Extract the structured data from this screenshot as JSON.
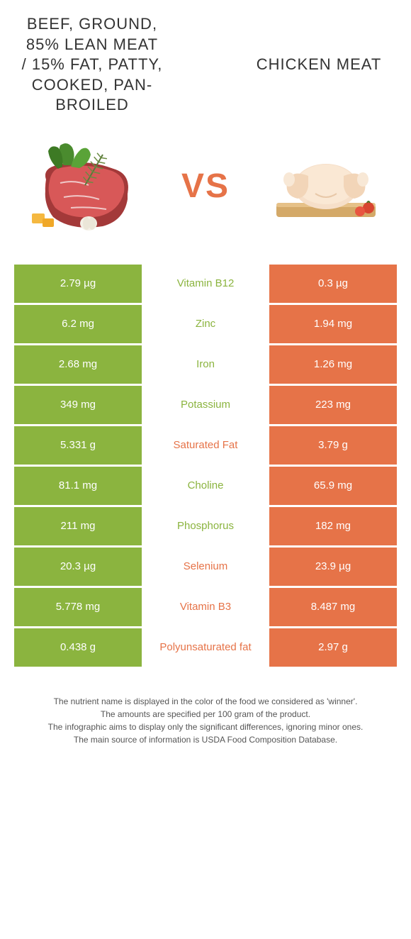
{
  "colors": {
    "left_bg": "#8bb43f",
    "right_bg": "#e67348",
    "left_text": "#8bb43f",
    "right_text": "#e67348",
    "vs": "#e67348"
  },
  "header": {
    "left_title": "BEEF, GROUND, 85% LEAN MEAT / 15% FAT, PATTY, COOKED, PAN-BROILED",
    "right_title": "CHICKEN MEAT",
    "vs": "VS"
  },
  "rows": [
    {
      "left": "2.79 µg",
      "label": "Vitamin B12",
      "right": "0.3 µg",
      "winner": "left"
    },
    {
      "left": "6.2 mg",
      "label": "Zinc",
      "right": "1.94 mg",
      "winner": "left"
    },
    {
      "left": "2.68 mg",
      "label": "Iron",
      "right": "1.26 mg",
      "winner": "left"
    },
    {
      "left": "349 mg",
      "label": "Potassium",
      "right": "223 mg",
      "winner": "left"
    },
    {
      "left": "5.331 g",
      "label": "Saturated Fat",
      "right": "3.79 g",
      "winner": "right"
    },
    {
      "left": "81.1 mg",
      "label": "Choline",
      "right": "65.9 mg",
      "winner": "left"
    },
    {
      "left": "211 mg",
      "label": "Phosphorus",
      "right": "182 mg",
      "winner": "left"
    },
    {
      "left": "20.3 µg",
      "label": "Selenium",
      "right": "23.9 µg",
      "winner": "right"
    },
    {
      "left": "5.778 mg",
      "label": "Vitamin B3",
      "right": "8.487 mg",
      "winner": "right"
    },
    {
      "left": "0.438 g",
      "label": "Polyunsaturated fat",
      "right": "2.97 g",
      "winner": "right"
    }
  ],
  "footer": {
    "l1": "The nutrient name is displayed in the color of the food we considered as 'winner'.",
    "l2": "The amounts are specified per 100 gram of the product.",
    "l3": "The infographic aims to display only the significant differences, ignoring minor ones.",
    "l4": "The main source of information is USDA Food Composition Database."
  }
}
